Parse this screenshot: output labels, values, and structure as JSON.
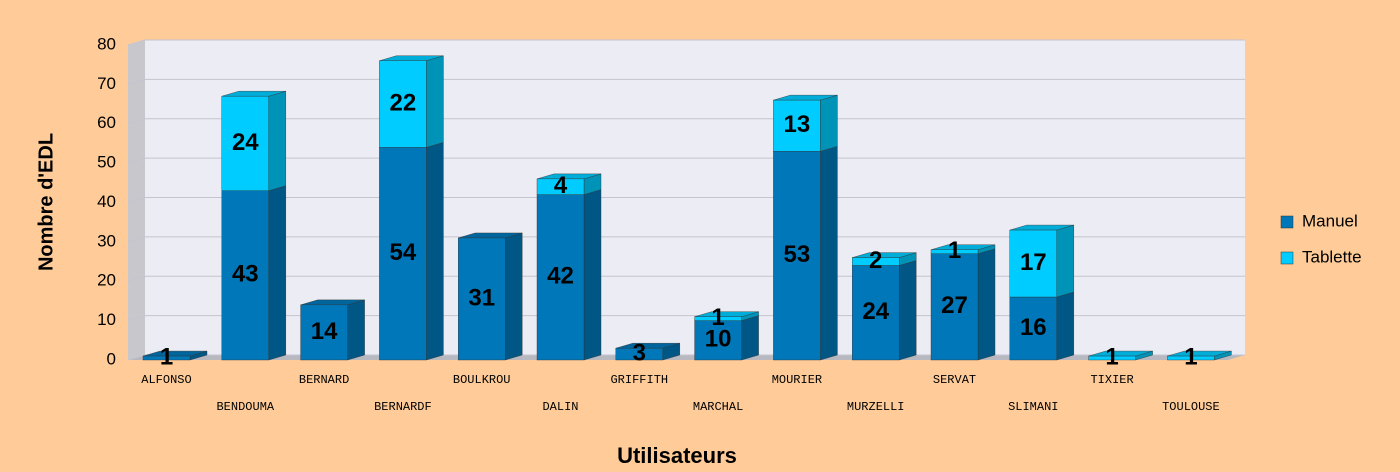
{
  "chart_data": {
    "type": "bar",
    "stacked": true,
    "x_label": "Utilisateurs",
    "y_label": "Nombre d'EDL",
    "categories": [
      "ALFONSO",
      "BENDOUMA",
      "BERNARD",
      "BERNARDF",
      "BOULKROU",
      "DALIN",
      "GRIFFITH",
      "MARCHAL",
      "MOURIER",
      "MURZELLI",
      "SERVAT",
      "SLIMANI",
      "TIXIER",
      "TOULOUSE"
    ],
    "series": [
      {
        "name": "Manuel",
        "color": "#0077b8",
        "values": [
          1,
          43,
          14,
          54,
          31,
          42,
          3,
          10,
          53,
          24,
          27,
          16,
          null,
          null
        ]
      },
      {
        "name": "Tablette",
        "color": "#00ccff",
        "values": [
          null,
          24,
          null,
          22,
          null,
          4,
          null,
          1,
          13,
          2,
          1,
          17,
          1,
          1
        ]
      }
    ],
    "ylim": [
      0,
      80
    ],
    "yticks": [
      0,
      10,
      20,
      30,
      40,
      50,
      60,
      70,
      80
    ],
    "grid": true,
    "legend": "right"
  }
}
